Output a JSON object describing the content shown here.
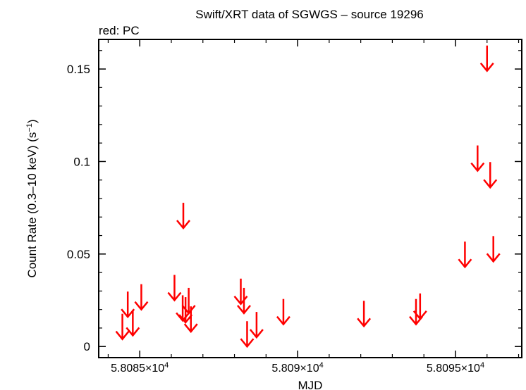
{
  "chart_data": {
    "type": "scatter",
    "title": "Swift/XRT data of SGWGS – source 19296",
    "subtitle": "red: PC",
    "xlabel": "MJD",
    "ylabel": "Count Rate (0.3–10 keV) (s",
    "ylabel_sup": "−1",
    "ylabel_close": ")",
    "marker": "upper-limit arrow",
    "color": "#ff0000",
    "xlim": [
      58083.7,
      58097.1
    ],
    "ylim": [
      -0.006,
      0.166
    ],
    "x_ticks": [
      {
        "value": 58085,
        "mantissa": "5.8085×10",
        "exp": "4"
      },
      {
        "value": 58090,
        "mantissa": "5.809×10",
        "exp": "4"
      },
      {
        "value": 58095,
        "mantissa": "5.8095×10",
        "exp": "4"
      }
    ],
    "y_ticks": [
      {
        "value": 0,
        "label": "0"
      },
      {
        "value": 0.05,
        "label": "0.05"
      },
      {
        "value": 0.1,
        "label": "0.1"
      },
      {
        "value": 0.15,
        "label": "0.15"
      }
    ],
    "series": [
      {
        "points": [
          {
            "x": 58084.45,
            "y": 0.004
          },
          {
            "x": 58084.62,
            "y": 0.016
          },
          {
            "x": 58084.78,
            "y": 0.006
          },
          {
            "x": 58085.05,
            "y": 0.02
          },
          {
            "x": 58086.1,
            "y": 0.025
          },
          {
            "x": 58086.38,
            "y": 0.064
          },
          {
            "x": 58086.36,
            "y": 0.014
          },
          {
            "x": 58086.45,
            "y": 0.013
          },
          {
            "x": 58086.55,
            "y": 0.018
          },
          {
            "x": 58086.62,
            "y": 0.008
          },
          {
            "x": 58088.2,
            "y": 0.023
          },
          {
            "x": 58088.3,
            "y": 0.018
          },
          {
            "x": 58088.4,
            "y": 0.0
          },
          {
            "x": 58088.7,
            "y": 0.005
          },
          {
            "x": 58089.55,
            "y": 0.012
          },
          {
            "x": 58092.1,
            "y": 0.011
          },
          {
            "x": 58093.75,
            "y": 0.012
          },
          {
            "x": 58093.88,
            "y": 0.015
          },
          {
            "x": 58095.3,
            "y": 0.043
          },
          {
            "x": 58095.7,
            "y": 0.095
          },
          {
            "x": 58096.0,
            "y": 0.149
          },
          {
            "x": 58096.1,
            "y": 0.086
          },
          {
            "x": 58096.2,
            "y": 0.046
          }
        ]
      }
    ]
  }
}
